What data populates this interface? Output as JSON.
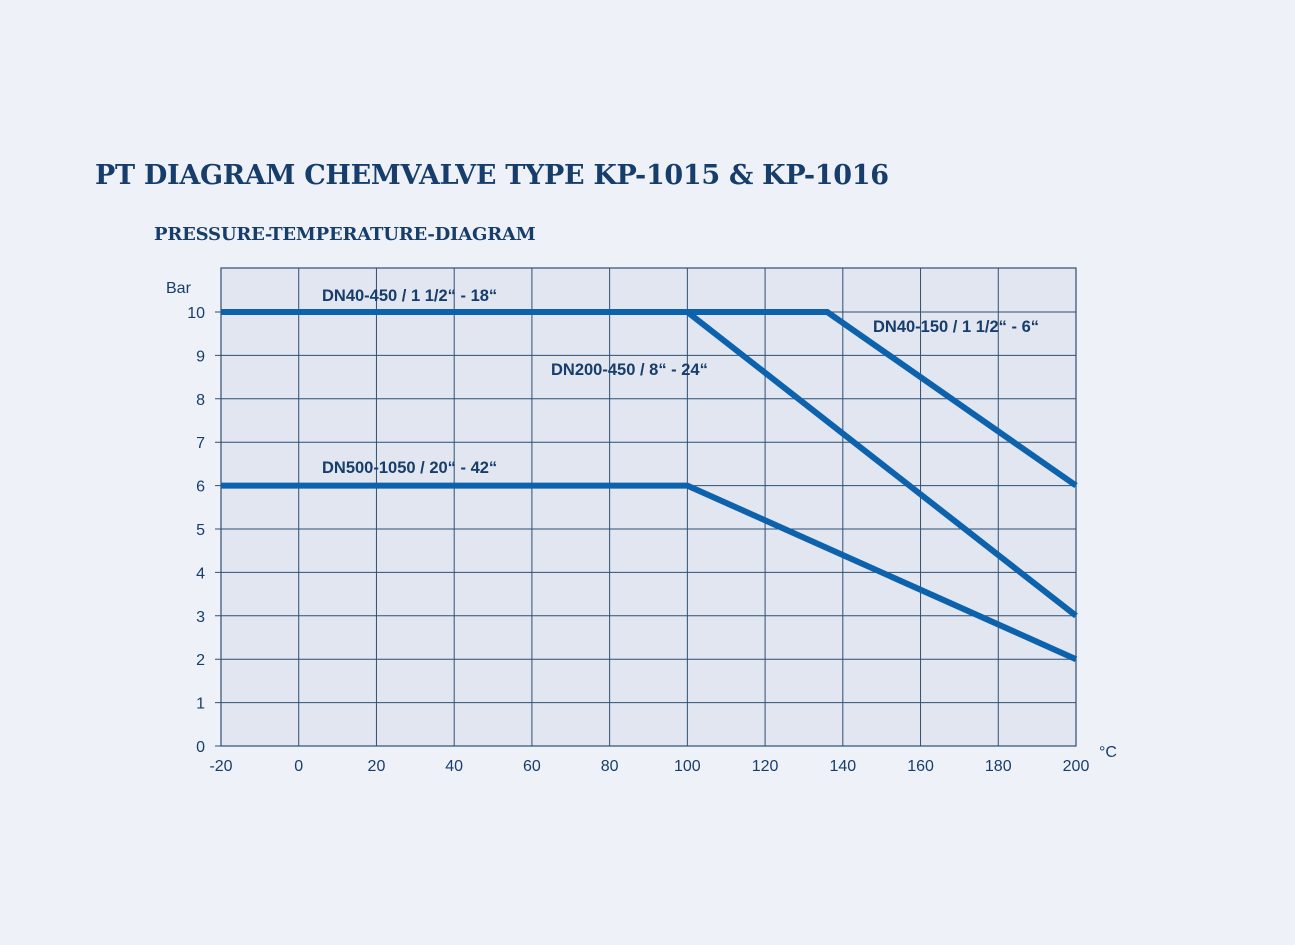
{
  "header": {
    "title": "PT DIAGRAM CHEMVALVE TYPE KP-1015 & KP-1016",
    "subtitle": "PRESSURE-TEMPERATURE-DIAGRAM"
  },
  "colors": {
    "background": "#eef2f8",
    "plot_background": "#e1e6f1",
    "grid": "#2f4f73",
    "series_line": "#0d62ad",
    "text": "#173d6b"
  },
  "chart_data": {
    "type": "line",
    "title": "PRESSURE-TEMPERATURE-DIAGRAM",
    "xlabel": "°C",
    "ylabel": "Bar",
    "xlim": [
      -20,
      200
    ],
    "ylim": [
      0,
      11
    ],
    "xticks": [
      -20,
      0,
      20,
      40,
      60,
      80,
      100,
      120,
      140,
      160,
      180,
      200
    ],
    "yticks": [
      0,
      1,
      2,
      3,
      4,
      5,
      6,
      7,
      8,
      9,
      10
    ],
    "grid": true,
    "series": [
      {
        "name": "DN40-450 / 1 1/2“ - 18“",
        "points": [
          [
            -20,
            10
          ],
          [
            100,
            10
          ]
        ]
      },
      {
        "name": "DN40-150 / 1 1/2“ - 6“",
        "points": [
          [
            100,
            10
          ],
          [
            136,
            10
          ],
          [
            200,
            6
          ]
        ]
      },
      {
        "name": "DN200-450 / 8“ - 24“",
        "points": [
          [
            100,
            10
          ],
          [
            200,
            3
          ]
        ]
      },
      {
        "name": "DN500-1050 / 20“ - 42“",
        "points": [
          [
            -20,
            6
          ],
          [
            100,
            6
          ],
          [
            200,
            2
          ]
        ]
      }
    ]
  }
}
